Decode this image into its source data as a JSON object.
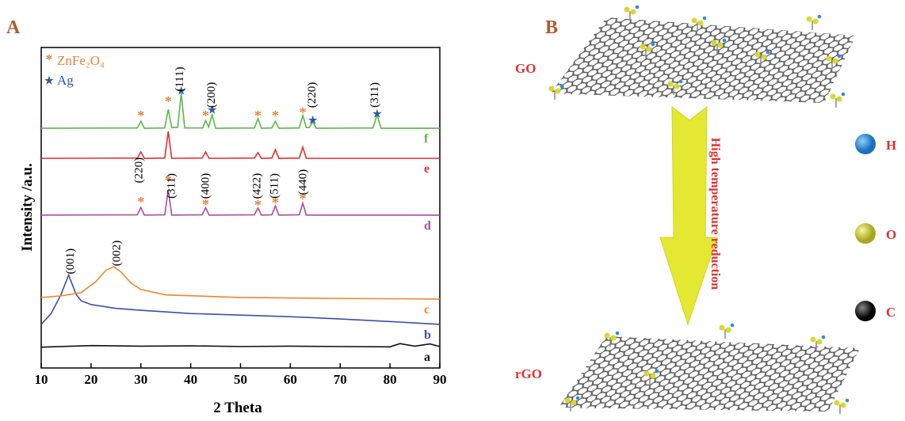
{
  "chart_data": {
    "type": "line",
    "panel": "A",
    "xlabel": "2 Theta",
    "ylabel": "Intensity /a.u.",
    "xlim": [
      10,
      90
    ],
    "xticks": [
      10,
      20,
      30,
      40,
      50,
      60,
      70,
      80,
      90
    ],
    "ylim": [
      0,
      100
    ],
    "legend": "upper left",
    "series": [
      {
        "name": "a",
        "color": "#111111",
        "x": [
          10,
          20,
          30,
          40,
          50,
          60,
          70,
          80,
          82,
          85,
          88,
          90
        ],
        "values": [
          6.5,
          7,
          6.8,
          6.9,
          6.7,
          6.8,
          6.7,
          6.6,
          7.6,
          6.8,
          7.5,
          6.7
        ]
      },
      {
        "name": "b",
        "color": "#3d4fa8",
        "x": [
          10,
          12,
          14,
          15.5,
          17,
          18,
          20,
          25,
          30,
          40,
          50,
          60,
          70,
          80,
          90
        ],
        "values": [
          13.6,
          17,
          23,
          29,
          23,
          21,
          19.8,
          18.6,
          18,
          17,
          16.5,
          16,
          15.3,
          14.5,
          13.6
        ]
      },
      {
        "name": "c",
        "color": "#f0862e",
        "x": [
          10,
          14,
          18,
          21,
          23,
          24.5,
          26,
          28,
          30,
          35,
          50,
          70,
          90
        ],
        "values": [
          22,
          22.5,
          23.5,
          27,
          30.5,
          31.6,
          30,
          26.5,
          24.5,
          22.8,
          22,
          21.7,
          21.5
        ]
      },
      {
        "name": "d",
        "color": "#a64ca6",
        "x": [
          10,
          29.3,
          30,
          30.7,
          34.8,
          35.5,
          36.2,
          42.3,
          43,
          43.7,
          52.8,
          53.5,
          54.2,
          56.3,
          57,
          57.7,
          61.8,
          62.5,
          63.2,
          90
        ],
        "values": [
          47.7,
          47.8,
          50.1,
          47.7,
          47.8,
          55.6,
          47.7,
          47.8,
          50,
          47.7,
          47.8,
          49.9,
          47.7,
          47.8,
          50.6,
          47.7,
          47.8,
          51.4,
          47.7,
          47.7
        ]
      },
      {
        "name": "e",
        "color": "#e03030",
        "x": [
          10,
          29.3,
          30,
          30.7,
          34.8,
          35.5,
          36.2,
          42.3,
          43,
          43.7,
          52.8,
          53.5,
          54.2,
          56.3,
          57,
          57.7,
          61.8,
          62.5,
          63.2,
          90
        ],
        "values": [
          65.4,
          65.5,
          67.4,
          65.4,
          65.5,
          73.8,
          65.4,
          65.5,
          67.4,
          65.4,
          65.5,
          67.2,
          65.4,
          65.5,
          68.1,
          65.4,
          65.5,
          68.9,
          65.4,
          65.4
        ]
      },
      {
        "name": "f",
        "color": "#5ab84a",
        "x": [
          10,
          29.3,
          30,
          30.7,
          34.8,
          35.5,
          36.2,
          37.4,
          38.1,
          38.8,
          42.4,
          43,
          43.6,
          44.3,
          45,
          52.8,
          53.5,
          54.2,
          56.3,
          57,
          57.7,
          61.8,
          62.5,
          63.2,
          63.8,
          64.5,
          65.2,
          76.6,
          77.4,
          78.2,
          90
        ],
        "values": [
          74.8,
          74.9,
          77,
          74.8,
          74.9,
          80.7,
          75,
          75.1,
          85.7,
          74.9,
          74.9,
          77.2,
          75.2,
          79,
          74.8,
          74.9,
          77.8,
          74.8,
          74.9,
          77,
          74.8,
          74.9,
          78.8,
          75,
          75,
          76.8,
          74.8,
          74.9,
          79,
          74.8,
          74.8
        ]
      }
    ],
    "phases": [
      {
        "name": "ZnFe₂O₄",
        "symbol": "*",
        "color": "#e8823a",
        "x": [
          30,
          35.5,
          43,
          53.5,
          57,
          62.5,
          30,
          35.5,
          43,
          53.5,
          57,
          62.5
        ],
        "y": [
          78.8,
          83.2,
          78.8,
          78.8,
          78.8,
          79.8,
          51.9,
          58.5,
          51.1,
          50.9,
          51.6,
          52.8
        ]
      },
      {
        "name": "Ag",
        "symbol": "★",
        "color": "#2b5aa6",
        "x": [
          38.1,
          44.3,
          64.5,
          77.4
        ],
        "y": [
          86.9,
          81,
          77.8,
          79.8
        ]
      }
    ],
    "annotations": [
      {
        "text": "(111)",
        "x": 38.5,
        "y": 90.1
      },
      {
        "text": "(200)",
        "x": 44.8,
        "y": 85.2
      },
      {
        "text": "(220)",
        "x": 65,
        "y": 85.2
      },
      {
        "text": "(311)",
        "x": 77.6,
        "y": 85.2
      },
      {
        "text": "(220)",
        "x": 30.3,
        "y": 61.7
      },
      {
        "text": "(311)",
        "x": 36.8,
        "y": 56.8
      },
      {
        "text": "(400)",
        "x": 43.6,
        "y": 56.8
      },
      {
        "text": "(422)",
        "x": 54,
        "y": 56.8
      },
      {
        "text": "(511)",
        "x": 57.5,
        "y": 56.8
      },
      {
        "text": "(440)",
        "x": 63.2,
        "y": 58
      },
      {
        "text": "(001)",
        "x": 16.5,
        "y": 33.3
      },
      {
        "text": "(002)",
        "x": 25.8,
        "y": 35.8
      }
    ]
  },
  "diagram": {
    "panel": "B",
    "top_label": "GO",
    "bottom_label": "rGO",
    "arrow_label": "High temperature reduction",
    "legend": [
      {
        "label": "H"
      },
      {
        "label": "O"
      },
      {
        "label": "C"
      }
    ]
  }
}
